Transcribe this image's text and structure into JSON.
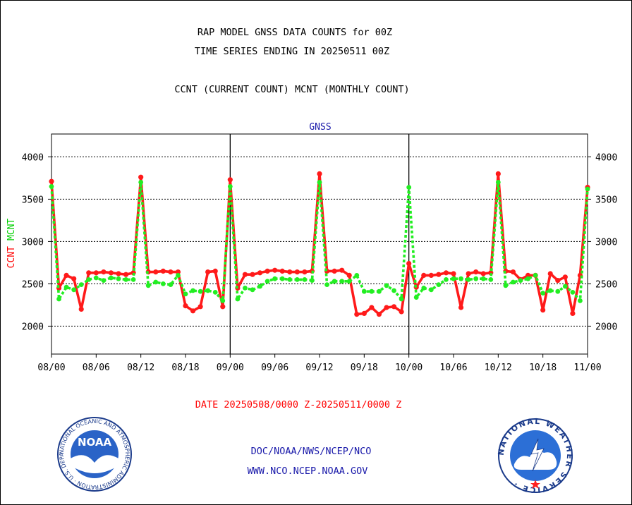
{
  "header": {
    "title_line1": "RAP MODEL GNSS DATA COUNTS for 00Z",
    "title_line2": "TIME SERIES ENDING IN 20250511 00Z",
    "subtitle": "CCNT (CURRENT COUNT) MCNT (MONTHLY COUNT)"
  },
  "footer": {
    "date_range": "DATE 20250508/0000 Z-20250511/0000 Z",
    "org_line": "DOC/NOAA/NWS/NCEP/NCO",
    "url_line": "WWW.NCO.NCEP.NOAA.GOV",
    "noaa_logo_text": "NOAA",
    "noaa_ring_text": "NATIONAL OCEANIC AND ATMOSPHERIC ADMINISTRATION · U.S. DEPARTMENT OF COMMERCE ·",
    "nws_ring_text": "NATIONAL WEATHER SERVICE ·"
  },
  "colors": {
    "ccnt": "#ff1a1a",
    "mcnt": "#22ee22",
    "text_red": "#ff0000",
    "text_blue": "#1a1aaa",
    "text_green": "#00d000"
  },
  "chart_data": {
    "type": "line",
    "title": "GNSS",
    "ylabel_parts": [
      "CCNT",
      "MCNT"
    ],
    "ylim": [
      1670,
      4270
    ],
    "yticks": [
      2000,
      2500,
      3000,
      3500,
      4000
    ],
    "xlim": [
      0,
      72
    ],
    "xticks": [
      {
        "x": 0,
        "label": "08/00"
      },
      {
        "x": 6,
        "label": "08/06"
      },
      {
        "x": 12,
        "label": "08/12"
      },
      {
        "x": 18,
        "label": "08/18"
      },
      {
        "x": 24,
        "label": "09/00"
      },
      {
        "x": 30,
        "label": "09/06"
      },
      {
        "x": 36,
        "label": "09/12"
      },
      {
        "x": 42,
        "label": "09/18"
      },
      {
        "x": 48,
        "label": "10/00"
      },
      {
        "x": 54,
        "label": "10/06"
      },
      {
        "x": 60,
        "label": "10/12"
      },
      {
        "x": 66,
        "label": "10/18"
      },
      {
        "x": 72,
        "label": "11/00"
      }
    ],
    "day_dividers": [
      24,
      48
    ],
    "grid": "horizontal-dotted",
    "series": [
      {
        "name": "CCNT",
        "values": [
          3710,
          2450,
          2600,
          2560,
          2200,
          2630,
          2630,
          2640,
          2630,
          2620,
          2610,
          2630,
          3760,
          2640,
          2640,
          2650,
          2640,
          2640,
          2240,
          2180,
          2230,
          2640,
          2650,
          2230,
          3730,
          2450,
          2610,
          2610,
          2630,
          2650,
          2660,
          2650,
          2640,
          2640,
          2640,
          2650,
          3800,
          2650,
          2650,
          2660,
          2600,
          2140,
          2150,
          2220,
          2140,
          2220,
          2230,
          2170,
          2740,
          2460,
          2600,
          2600,
          2610,
          2630,
          2620,
          2220,
          2620,
          2640,
          2620,
          2630,
          3800,
          2650,
          2640,
          2550,
          2600,
          2600,
          2190,
          2620,
          2540,
          2580,
          2150,
          2600,
          3640
        ]
      },
      {
        "name": "MCNT",
        "values": [
          3650,
          2320,
          2460,
          2430,
          2490,
          2550,
          2570,
          2540,
          2570,
          2560,
          2550,
          2550,
          3700,
          2480,
          2520,
          2500,
          2490,
          2600,
          2380,
          2420,
          2410,
          2420,
          2400,
          2300,
          3650,
          2320,
          2450,
          2430,
          2470,
          2530,
          2560,
          2560,
          2550,
          2550,
          2550,
          2540,
          3700,
          2490,
          2530,
          2530,
          2530,
          2600,
          2410,
          2410,
          2410,
          2480,
          2420,
          2320,
          3640,
          2340,
          2450,
          2430,
          2490,
          2550,
          2560,
          2560,
          2550,
          2560,
          2560,
          2550,
          3700,
          2480,
          2520,
          2540,
          2560,
          2600,
          2390,
          2420,
          2410,
          2470,
          2400,
          2300,
          3620
        ]
      }
    ]
  }
}
